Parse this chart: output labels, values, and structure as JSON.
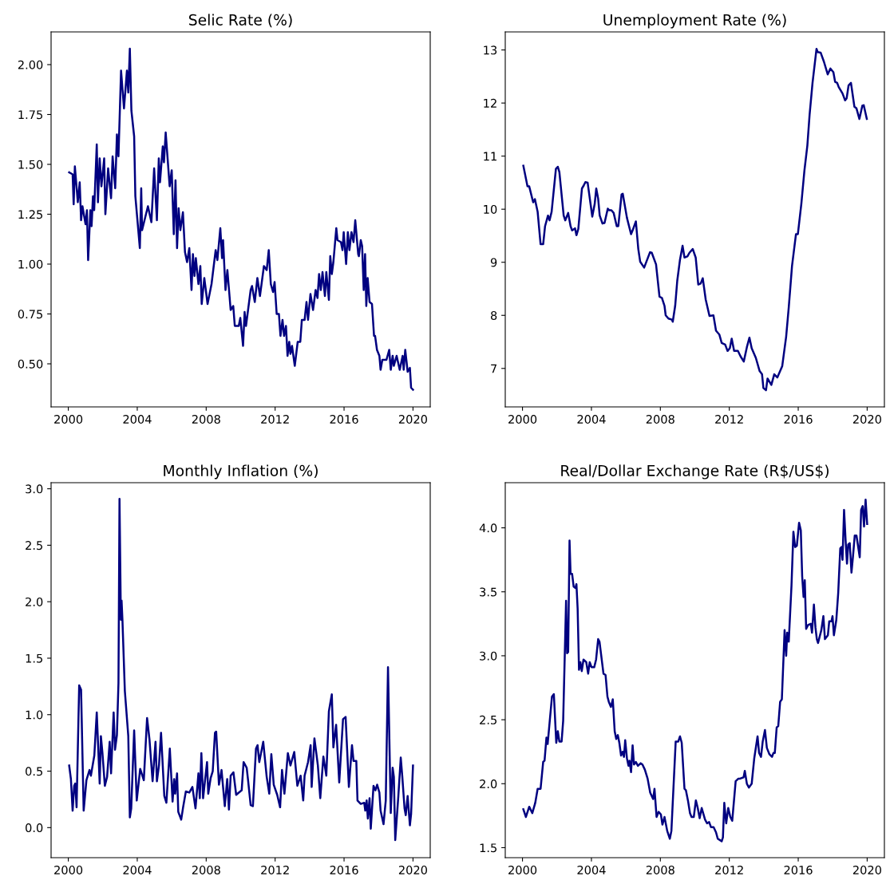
{
  "chart_data": [
    {
      "type": "line",
      "title": "Selic Rate (%)",
      "xlim": [
        1999.0,
        2021.0
      ],
      "xticks": [
        2000,
        2004,
        2008,
        2012,
        2016,
        2020
      ],
      "ylim": [
        0.284,
        2.164
      ],
      "yticks": [
        {
          "value": 0.5,
          "label": "0.50"
        },
        {
          "value": 0.75,
          "label": "0.75"
        },
        {
          "value": 1.0,
          "label": "1.00"
        },
        {
          "value": 1.25,
          "label": "1.25"
        },
        {
          "value": 1.5,
          "label": "1.50"
        },
        {
          "value": 1.75,
          "label": "1.75"
        },
        {
          "value": 2.0,
          "label": "2.00"
        }
      ],
      "grid": false,
      "marker": "none",
      "line_style": "solid",
      "series": [
        {
          "color": "#000080",
          "x": [
            2000.05,
            2000.25,
            2000.31,
            2000.38,
            2000.55,
            2000.66,
            2000.74,
            2000.82,
            2001.0,
            2001.08,
            2001.15,
            2001.28,
            2001.35,
            2001.43,
            2001.5,
            2001.65,
            2001.72,
            2001.82,
            2001.92,
            2002.08,
            2002.15,
            2002.31,
            2002.48,
            2002.57,
            2002.72,
            2002.82,
            2002.91,
            2003.06,
            2003.23,
            2003.4,
            2003.48,
            2003.57,
            2003.66,
            2003.82,
            2003.89,
            2004.15,
            2004.23,
            2004.28,
            2004.62,
            2004.82,
            2004.98,
            2005.14,
            2005.25,
            2005.32,
            2005.48,
            2005.55,
            2005.65,
            2005.88,
            2006.0,
            2006.12,
            2006.22,
            2006.31,
            2006.4,
            2006.5,
            2006.65,
            2006.77,
            2006.89,
            2007.02,
            2007.15,
            2007.23,
            2007.32,
            2007.4,
            2007.55,
            2007.66,
            2007.74,
            2007.89,
            2008.08,
            2008.31,
            2008.55,
            2008.65,
            2008.82,
            2008.92,
            2008.98,
            2009.12,
            2009.23,
            2009.42,
            2009.57,
            2009.66,
            2009.89,
            2009.98,
            2010.14,
            2010.23,
            2010.31,
            2010.58,
            2010.66,
            2010.82,
            2010.97,
            2011.12,
            2011.35,
            2011.51,
            2011.63,
            2011.75,
            2011.88,
            2011.97,
            2012.09,
            2012.22,
            2012.31,
            2012.43,
            2012.52,
            2012.63,
            2012.72,
            2012.82,
            2012.89,
            2012.98,
            2013.14,
            2013.31,
            2013.46,
            2013.55,
            2013.71,
            2013.82,
            2013.91,
            2014.05,
            2014.2,
            2014.35,
            2014.46,
            2014.55,
            2014.65,
            2014.75,
            2014.89,
            2014.97,
            2015.12,
            2015.2,
            2015.29,
            2015.38,
            2015.55,
            2015.62,
            2015.82,
            2015.91,
            2015.98,
            2016.12,
            2016.22,
            2016.31,
            2016.43,
            2016.55,
            2016.65,
            2016.82,
            2016.86,
            2016.97,
            2017.05,
            2017.14,
            2017.22,
            2017.29,
            2017.37,
            2017.48,
            2017.62,
            2017.74,
            2017.8,
            2017.91,
            2018.05,
            2018.12,
            2018.22,
            2018.46,
            2018.62,
            2018.71,
            2018.82,
            2018.89,
            2019.05,
            2019.23,
            2019.4,
            2019.46,
            2019.55,
            2019.69,
            2019.82,
            2019.89,
            2020.0
          ],
          "values": [
            1.46,
            1.45,
            1.3,
            1.49,
            1.31,
            1.41,
            1.22,
            1.29,
            1.2,
            1.27,
            1.02,
            1.27,
            1.19,
            1.34,
            1.27,
            1.6,
            1.31,
            1.53,
            1.39,
            1.53,
            1.25,
            1.48,
            1.33,
            1.54,
            1.38,
            1.65,
            1.54,
            1.97,
            1.78,
            1.97,
            1.86,
            2.08,
            1.77,
            1.64,
            1.34,
            1.08,
            1.38,
            1.17,
            1.29,
            1.21,
            1.48,
            1.22,
            1.53,
            1.41,
            1.59,
            1.51,
            1.66,
            1.39,
            1.47,
            1.15,
            1.42,
            1.08,
            1.28,
            1.17,
            1.26,
            1.06,
            1.01,
            1.08,
            0.87,
            1.05,
            0.94,
            1.03,
            0.9,
            0.99,
            0.8,
            0.93,
            0.8,
            0.9,
            1.07,
            1.02,
            1.18,
            1.03,
            1.12,
            0.87,
            0.97,
            0.77,
            0.79,
            0.69,
            0.69,
            0.73,
            0.59,
            0.76,
            0.69,
            0.87,
            0.89,
            0.81,
            0.93,
            0.84,
            0.99,
            0.97,
            1.07,
            0.9,
            0.86,
            0.91,
            0.75,
            0.75,
            0.64,
            0.72,
            0.64,
            0.69,
            0.54,
            0.61,
            0.55,
            0.59,
            0.49,
            0.61,
            0.61,
            0.72,
            0.72,
            0.81,
            0.72,
            0.85,
            0.77,
            0.87,
            0.83,
            0.95,
            0.87,
            0.96,
            0.84,
            0.96,
            0.82,
            1.04,
            0.95,
            1.01,
            1.18,
            1.12,
            1.11,
            1.07,
            1.16,
            1.0,
            1.16,
            1.07,
            1.16,
            1.11,
            1.22,
            1.05,
            1.04,
            1.12,
            1.09,
            0.87,
            1.05,
            0.79,
            0.93,
            0.81,
            0.8,
            0.64,
            0.64,
            0.57,
            0.54,
            0.47,
            0.52,
            0.52,
            0.57,
            0.47,
            0.54,
            0.49,
            0.54,
            0.47,
            0.54,
            0.47,
            0.57,
            0.46,
            0.48,
            0.38,
            0.37
          ]
        }
      ]
    },
    {
      "type": "line",
      "title": "Unemployment Rate (%)",
      "xlim": [
        1999.0,
        2021.0
      ],
      "xticks": [
        2000,
        2004,
        2008,
        2012,
        2016,
        2020
      ],
      "ylim": [
        6.275,
        13.34
      ],
      "yticks": [
        7,
        8,
        9,
        10,
        11,
        12,
        13
      ],
      "grid": false,
      "marker": "none",
      "line_style": "solid",
      "series": [
        {
          "color": "#000080",
          "x": [
            2000.05,
            2000.29,
            2000.39,
            2000.62,
            2000.72,
            2000.88,
            2001.05,
            2001.2,
            2001.31,
            2001.48,
            2001.57,
            2001.69,
            2001.94,
            2002.05,
            2002.14,
            2002.39,
            2002.48,
            2002.65,
            2002.79,
            2002.88,
            2003.05,
            2003.13,
            2003.24,
            2003.45,
            2003.56,
            2003.65,
            2003.78,
            2004.05,
            2004.19,
            2004.28,
            2004.39,
            2004.48,
            2004.64,
            2004.76,
            2004.95,
            2005.04,
            2005.16,
            2005.29,
            2005.47,
            2005.56,
            2005.75,
            2005.82,
            2006.06,
            2006.3,
            2006.39,
            2006.58,
            2006.72,
            2006.83,
            2007.06,
            2007.4,
            2007.5,
            2007.75,
            2007.95,
            2008.09,
            2008.24,
            2008.31,
            2008.47,
            2008.67,
            2008.72,
            2008.86,
            2008.98,
            2009.14,
            2009.29,
            2009.4,
            2009.57,
            2009.69,
            2009.88,
            2010.05,
            2010.2,
            2010.34,
            2010.46,
            2010.63,
            2010.85,
            2011.08,
            2011.23,
            2011.42,
            2011.56,
            2011.76,
            2011.9,
            2012.03,
            2012.14,
            2012.28,
            2012.5,
            2012.65,
            2012.84,
            2013.02,
            2013.17,
            2013.3,
            2013.54,
            2013.76,
            2013.9,
            2013.98,
            2014.13,
            2014.22,
            2014.44,
            2014.61,
            2014.79,
            2015.07,
            2015.3,
            2015.45,
            2015.64,
            2015.87,
            2015.98,
            2016.18,
            2016.36,
            2016.53,
            2016.66,
            2016.83,
            2017.06,
            2017.13,
            2017.3,
            2017.49,
            2017.71,
            2017.87,
            2018.04,
            2018.14,
            2018.26,
            2018.35,
            2018.57,
            2018.72,
            2018.81,
            2018.92,
            2019.06,
            2019.26,
            2019.38,
            2019.55,
            2019.72,
            2019.8,
            2019.98
          ],
          "values": [
            10.82,
            10.43,
            10.43,
            10.13,
            10.19,
            9.95,
            9.34,
            9.34,
            9.68,
            9.88,
            9.79,
            9.95,
            10.76,
            10.8,
            10.7,
            9.88,
            9.79,
            9.93,
            9.68,
            9.6,
            9.64,
            9.51,
            9.63,
            10.39,
            10.45,
            10.51,
            10.5,
            9.86,
            10.1,
            10.39,
            10.2,
            9.88,
            9.73,
            9.74,
            10.01,
            9.98,
            9.98,
            9.93,
            9.68,
            9.68,
            10.28,
            10.29,
            9.84,
            9.53,
            9.6,
            9.77,
            9.25,
            9.01,
            8.9,
            9.19,
            9.18,
            8.96,
            8.35,
            8.33,
            8.18,
            8.0,
            7.94,
            7.92,
            7.88,
            8.18,
            8.65,
            9.05,
            9.31,
            9.09,
            9.11,
            9.18,
            9.25,
            9.09,
            8.58,
            8.6,
            8.7,
            8.3,
            7.99,
            8.0,
            7.71,
            7.64,
            7.48,
            7.45,
            7.33,
            7.38,
            7.56,
            7.33,
            7.33,
            7.23,
            7.13,
            7.4,
            7.58,
            7.38,
            7.2,
            6.95,
            6.89,
            6.63,
            6.59,
            6.81,
            6.69,
            6.89,
            6.83,
            7.04,
            7.6,
            8.15,
            8.93,
            9.53,
            9.53,
            10.1,
            10.73,
            11.2,
            11.78,
            12.38,
            13.02,
            12.96,
            12.95,
            12.78,
            12.54,
            12.65,
            12.58,
            12.4,
            12.38,
            12.3,
            12.18,
            12.05,
            12.09,
            12.33,
            12.38,
            11.93,
            11.9,
            11.7,
            11.95,
            11.96,
            11.7
          ]
        }
      ]
    },
    {
      "type": "line",
      "title": "Monthly Inflation (%)",
      "xlim": [
        1999.0,
        2021.0
      ],
      "xticks": [
        2000,
        2004,
        2008,
        2012,
        2016,
        2020
      ],
      "ylim": [
        -0.266,
        3.054
      ],
      "yticks": [
        {
          "value": 0.0,
          "label": "0.0"
        },
        {
          "value": 0.5,
          "label": "0.5"
        },
        {
          "value": 1.0,
          "label": "1.0"
        },
        {
          "value": 1.5,
          "label": "1.5"
        },
        {
          "value": 2.0,
          "label": "2.0"
        },
        {
          "value": 2.5,
          "label": "2.5"
        },
        {
          "value": 3.0,
          "label": "3.0"
        }
      ],
      "grid": false,
      "marker": "none",
      "line_style": "solid",
      "series": [
        {
          "color": "#000080",
          "x": [
            2000.05,
            2000.15,
            2000.25,
            2000.34,
            2000.4,
            2000.48,
            2000.63,
            2000.74,
            2000.89,
            2001.05,
            2001.23,
            2001.31,
            2001.51,
            2001.65,
            2001.82,
            2001.89,
            2001.98,
            2002.12,
            2002.25,
            2002.4,
            2002.48,
            2002.63,
            2002.71,
            2002.82,
            2002.91,
            2002.97,
            2003.05,
            2003.09,
            2003.14,
            2003.28,
            2003.48,
            2003.57,
            2003.65,
            2003.82,
            2003.97,
            2004.17,
            2004.38,
            2004.57,
            2004.71,
            2004.89,
            2005.06,
            2005.14,
            2005.26,
            2005.38,
            2005.57,
            2005.69,
            2005.89,
            2006.05,
            2006.14,
            2006.2,
            2006.31,
            2006.38,
            2006.55,
            2006.66,
            2006.82,
            2007.02,
            2007.2,
            2007.38,
            2007.55,
            2007.63,
            2007.72,
            2007.82,
            2008.05,
            2008.12,
            2008.26,
            2008.38,
            2008.51,
            2008.58,
            2008.74,
            2008.89,
            2009.08,
            2009.22,
            2009.32,
            2009.42,
            2009.58,
            2009.74,
            2009.89,
            2010.06,
            2010.17,
            2010.35,
            2010.43,
            2010.58,
            2010.71,
            2010.89,
            2010.98,
            2011.08,
            2011.31,
            2011.51,
            2011.66,
            2011.78,
            2011.92,
            2012.12,
            2012.29,
            2012.4,
            2012.54,
            2012.74,
            2012.89,
            2013.11,
            2013.29,
            2013.48,
            2013.63,
            2013.71,
            2013.91,
            2014.06,
            2014.12,
            2014.28,
            2014.48,
            2014.62,
            2014.8,
            2014.97,
            2015.12,
            2015.29,
            2015.38,
            2015.54,
            2015.72,
            2015.94,
            2016.09,
            2016.28,
            2016.46,
            2016.55,
            2016.71,
            2016.78,
            2016.97,
            2017.17,
            2017.23,
            2017.31,
            2017.38,
            2017.48,
            2017.55,
            2017.71,
            2017.82,
            2017.92,
            2018.05,
            2018.12,
            2018.29,
            2018.42,
            2018.55,
            2018.71,
            2018.82,
            2018.89,
            2018.97,
            2019.15,
            2019.29,
            2019.38,
            2019.51,
            2019.58,
            2019.69,
            2019.82,
            2019.89,
            2020.0
          ],
          "values": [
            0.55,
            0.43,
            0.15,
            0.37,
            0.39,
            0.18,
            1.26,
            1.22,
            0.15,
            0.42,
            0.51,
            0.46,
            0.64,
            1.02,
            0.39,
            0.81,
            0.66,
            0.37,
            0.45,
            0.76,
            0.48,
            1.02,
            0.69,
            0.82,
            1.28,
            2.91,
            1.84,
            2.01,
            1.84,
            1.21,
            0.81,
            0.09,
            0.17,
            0.86,
            0.24,
            0.52,
            0.42,
            0.97,
            0.78,
            0.41,
            0.76,
            0.41,
            0.55,
            0.84,
            0.28,
            0.22,
            0.7,
            0.23,
            0.43,
            0.3,
            0.48,
            0.14,
            0.07,
            0.18,
            0.32,
            0.31,
            0.36,
            0.17,
            0.48,
            0.26,
            0.66,
            0.26,
            0.58,
            0.3,
            0.44,
            0.5,
            0.84,
            0.85,
            0.38,
            0.51,
            0.19,
            0.43,
            0.16,
            0.46,
            0.49,
            0.29,
            0.31,
            0.33,
            0.58,
            0.53,
            0.42,
            0.2,
            0.19,
            0.7,
            0.73,
            0.58,
            0.76,
            0.45,
            0.3,
            0.65,
            0.38,
            0.29,
            0.18,
            0.51,
            0.3,
            0.66,
            0.55,
            0.67,
            0.37,
            0.46,
            0.24,
            0.46,
            0.58,
            0.73,
            0.36,
            0.79,
            0.55,
            0.26,
            0.63,
            0.46,
            1.03,
            1.18,
            0.71,
            0.91,
            0.4,
            0.96,
            0.98,
            0.36,
            0.73,
            0.59,
            0.59,
            0.24,
            0.21,
            0.22,
            0.15,
            0.24,
            0.08,
            0.26,
            -0.01,
            0.37,
            0.33,
            0.38,
            0.31,
            0.15,
            0.03,
            0.24,
            1.42,
            0.13,
            0.53,
            0.45,
            -0.11,
            0.28,
            0.62,
            0.45,
            0.17,
            0.11,
            0.28,
            0.02,
            0.12,
            0.55
          ]
        }
      ]
    },
    {
      "type": "line",
      "title": "Real/Dollar Exchange Rate (R$/US$)",
      "xlim": [
        1999.0,
        2021.0
      ],
      "xticks": [
        2000,
        2004,
        2008,
        2012,
        2016,
        2020
      ],
      "ylim": [
        1.422,
        4.353
      ],
      "yticks": [
        {
          "value": 1.5,
          "label": "1.5"
        },
        {
          "value": 2.0,
          "label": "2.0"
        },
        {
          "value": 2.5,
          "label": "2.5"
        },
        {
          "value": 3.0,
          "label": "3.0"
        },
        {
          "value": 3.5,
          "label": "3.5"
        },
        {
          "value": 4.0,
          "label": "4.0"
        }
      ],
      "grid": false,
      "marker": "none",
      "line_style": "solid",
      "series": [
        {
          "color": "#000080",
          "x": [
            2000.05,
            2000.2,
            2000.39,
            2000.57,
            2000.74,
            2000.88,
            2001.05,
            2001.2,
            2001.28,
            2001.39,
            2001.46,
            2001.71,
            2001.82,
            2001.96,
            2002.05,
            2002.14,
            2002.27,
            2002.36,
            2002.53,
            2002.59,
            2002.65,
            2002.73,
            2002.79,
            2002.88,
            2002.97,
            2003.07,
            2003.13,
            2003.2,
            2003.28,
            2003.36,
            2003.44,
            2003.54,
            2003.7,
            2003.81,
            2003.9,
            2004.01,
            2004.16,
            2004.27,
            2004.39,
            2004.47,
            2004.7,
            2004.82,
            2004.93,
            2005.01,
            2005.13,
            2005.24,
            2005.35,
            2005.44,
            2005.53,
            2005.62,
            2005.72,
            2005.81,
            2005.89,
            2005.96,
            2006.06,
            2006.15,
            2006.21,
            2006.3,
            2006.39,
            2006.47,
            2006.58,
            2006.7,
            2006.86,
            2006.96,
            2007.1,
            2007.26,
            2007.41,
            2007.58,
            2007.66,
            2007.78,
            2007.9,
            2008.03,
            2008.12,
            2008.24,
            2008.4,
            2008.55,
            2008.64,
            2008.89,
            2009.04,
            2009.14,
            2009.24,
            2009.4,
            2009.48,
            2009.6,
            2009.72,
            2009.81,
            2009.94,
            2010.06,
            2010.17,
            2010.28,
            2010.4,
            2010.59,
            2010.71,
            2010.83,
            2010.94,
            2011.09,
            2011.23,
            2011.33,
            2011.45,
            2011.56,
            2011.63,
            2011.71,
            2011.82,
            2011.94,
            2012.06,
            2012.17,
            2012.37,
            2012.53,
            2012.63,
            2012.83,
            2012.9,
            2013.02,
            2013.14,
            2013.3,
            2013.45,
            2013.64,
            2013.73,
            2013.84,
            2013.94,
            2014.07,
            2014.18,
            2014.33,
            2014.48,
            2014.56,
            2014.64,
            2014.75,
            2014.84,
            2014.95,
            2015.05,
            2015.21,
            2015.3,
            2015.36,
            2015.45,
            2015.61,
            2015.72,
            2015.82,
            2015.92,
            2016.05,
            2016.15,
            2016.23,
            2016.31,
            2016.38,
            2016.46,
            2016.57,
            2016.73,
            2016.8,
            2016.91,
            2017.0,
            2017.08,
            2017.15,
            2017.34,
            2017.46,
            2017.55,
            2017.72,
            2017.8,
            2017.93,
            2017.99,
            2018.07,
            2018.21,
            2018.32,
            2018.44,
            2018.51,
            2018.57,
            2018.66,
            2018.75,
            2018.83,
            2018.9,
            2018.99,
            2019.09,
            2019.18,
            2019.28,
            2019.38,
            2019.57,
            2019.65,
            2019.74,
            2019.82,
            2019.91,
            2020.0
          ],
          "values": [
            1.8,
            1.74,
            1.82,
            1.77,
            1.85,
            1.96,
            1.96,
            2.17,
            2.18,
            2.36,
            2.31,
            2.68,
            2.7,
            2.32,
            2.41,
            2.33,
            2.33,
            2.49,
            3.43,
            3.02,
            3.03,
            3.9,
            3.64,
            3.64,
            3.54,
            3.53,
            3.56,
            3.37,
            2.89,
            2.95,
            2.88,
            2.97,
            2.95,
            2.86,
            2.95,
            2.91,
            2.91,
            2.97,
            3.13,
            3.11,
            2.86,
            2.85,
            2.68,
            2.64,
            2.6,
            2.66,
            2.41,
            2.35,
            2.38,
            2.32,
            2.22,
            2.25,
            2.21,
            2.34,
            2.2,
            2.14,
            2.18,
            2.09,
            2.3,
            2.15,
            2.17,
            2.14,
            2.16,
            2.15,
            2.11,
            2.04,
            1.93,
            1.88,
            1.96,
            1.74,
            1.78,
            1.76,
            1.68,
            1.74,
            1.63,
            1.57,
            1.63,
            2.33,
            2.33,
            2.37,
            2.32,
            1.96,
            1.95,
            1.87,
            1.77,
            1.74,
            1.74,
            1.87,
            1.81,
            1.73,
            1.81,
            1.72,
            1.69,
            1.7,
            1.66,
            1.66,
            1.62,
            1.57,
            1.56,
            1.55,
            1.58,
            1.85,
            1.69,
            1.81,
            1.74,
            1.71,
            2.02,
            2.04,
            2.04,
            2.05,
            2.1,
            2.0,
            1.97,
            2.0,
            2.2,
            2.37,
            2.24,
            2.21,
            2.33,
            2.42,
            2.28,
            2.23,
            2.21,
            2.24,
            2.24,
            2.44,
            2.45,
            2.64,
            2.66,
            3.2,
            3.0,
            3.18,
            3.11,
            3.55,
            3.97,
            3.85,
            3.86,
            4.04,
            3.98,
            3.62,
            3.46,
            3.59,
            3.21,
            3.24,
            3.25,
            3.18,
            3.4,
            3.22,
            3.13,
            3.1,
            3.2,
            3.31,
            3.13,
            3.16,
            3.27,
            3.27,
            3.31,
            3.16,
            3.28,
            3.49,
            3.84,
            3.85,
            3.75,
            4.14,
            3.9,
            3.72,
            3.87,
            3.88,
            3.65,
            3.78,
            3.94,
            3.94,
            3.77,
            4.14,
            4.17,
            4.01,
            4.22,
            4.03
          ]
        }
      ]
    }
  ]
}
